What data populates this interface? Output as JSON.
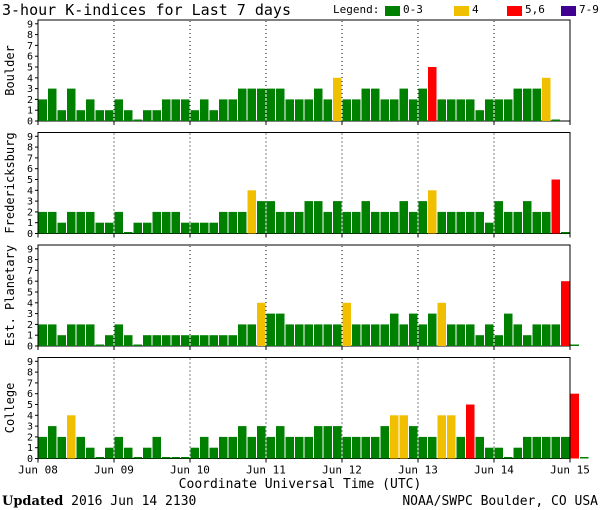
{
  "header": {
    "title": "3-hour K-indices for Last 7 days",
    "legend_label": "Legend:",
    "legend": [
      {
        "label": "0-3",
        "color": "#008000"
      },
      {
        "label": "4",
        "color": "#f0c000"
      },
      {
        "label": "5,6",
        "color": "#ff0000"
      },
      {
        "label": "7-9",
        "color": "#400090"
      }
    ]
  },
  "footer": {
    "updated_label": "Updated",
    "updated_value": "2016 Jun 14 2130",
    "credit": "NOAA/SWPC Boulder, CO USA"
  },
  "chart_data": {
    "type": "bar",
    "title": "3-hour K-indices for Last 7 days",
    "xlabel": "Coordinate Universal Time (UTC)",
    "x_ticks": [
      "Jun 08",
      "Jun 09",
      "Jun 10",
      "Jun 11",
      "Jun 12",
      "Jun 13",
      "Jun 14",
      "Jun 15"
    ],
    "y_ticks": [
      "0",
      "1",
      "2",
      "3",
      "4",
      "5",
      "6",
      "7",
      "8",
      "9"
    ],
    "ylim": [
      0,
      9
    ],
    "bars_per_day": 8,
    "color_scale": {
      "0-3": "#008000",
      "4": "#f0c000",
      "5,6": "#ff0000",
      "7-9": "#400090"
    },
    "series": [
      {
        "name": "Boulder",
        "values": [
          2,
          3,
          1,
          3,
          1,
          2,
          1,
          1,
          2,
          1,
          0,
          1,
          1,
          2,
          2,
          2,
          1,
          2,
          1,
          2,
          2,
          3,
          3,
          3,
          3,
          3,
          2,
          2,
          2,
          3,
          2,
          4,
          2,
          2,
          3,
          3,
          2,
          2,
          3,
          2,
          3,
          5,
          2,
          2,
          2,
          2,
          1,
          2,
          2,
          2,
          3,
          3,
          3,
          4,
          0
        ]
      },
      {
        "name": "Fredericksburg",
        "values": [
          2,
          2,
          1,
          2,
          2,
          2,
          1,
          1,
          2,
          0,
          1,
          1,
          2,
          2,
          2,
          1,
          1,
          1,
          1,
          2,
          2,
          2,
          4,
          3,
          3,
          2,
          2,
          2,
          3,
          3,
          2,
          3,
          2,
          2,
          3,
          2,
          2,
          2,
          3,
          2,
          3,
          4,
          2,
          2,
          2,
          2,
          2,
          1,
          3,
          2,
          2,
          3,
          2,
          2,
          5,
          0
        ]
      },
      {
        "name": "Est. Planetary",
        "values": [
          2,
          2,
          1,
          2,
          2,
          2,
          0,
          1,
          2,
          1,
          0,
          1,
          1,
          1,
          1,
          1,
          1,
          1,
          1,
          1,
          1,
          2,
          2,
          4,
          3,
          3,
          2,
          2,
          2,
          2,
          2,
          2,
          4,
          2,
          2,
          2,
          2,
          3,
          2,
          3,
          2,
          3,
          4,
          2,
          2,
          2,
          1,
          2,
          1,
          3,
          2,
          1,
          2,
          2,
          2,
          6,
          0
        ]
      },
      {
        "name": "College",
        "values": [
          2,
          3,
          2,
          4,
          2,
          1,
          0,
          1,
          2,
          1,
          0,
          1,
          2,
          0,
          0,
          0,
          1,
          2,
          1,
          2,
          2,
          3,
          2,
          3,
          2,
          3,
          2,
          2,
          2,
          3,
          3,
          3,
          2,
          2,
          2,
          2,
          3,
          4,
          4,
          3,
          2,
          2,
          4,
          4,
          2,
          5,
          2,
          1,
          1,
          0,
          1,
          2,
          2,
          2,
          2,
          2,
          6,
          0
        ]
      }
    ]
  }
}
